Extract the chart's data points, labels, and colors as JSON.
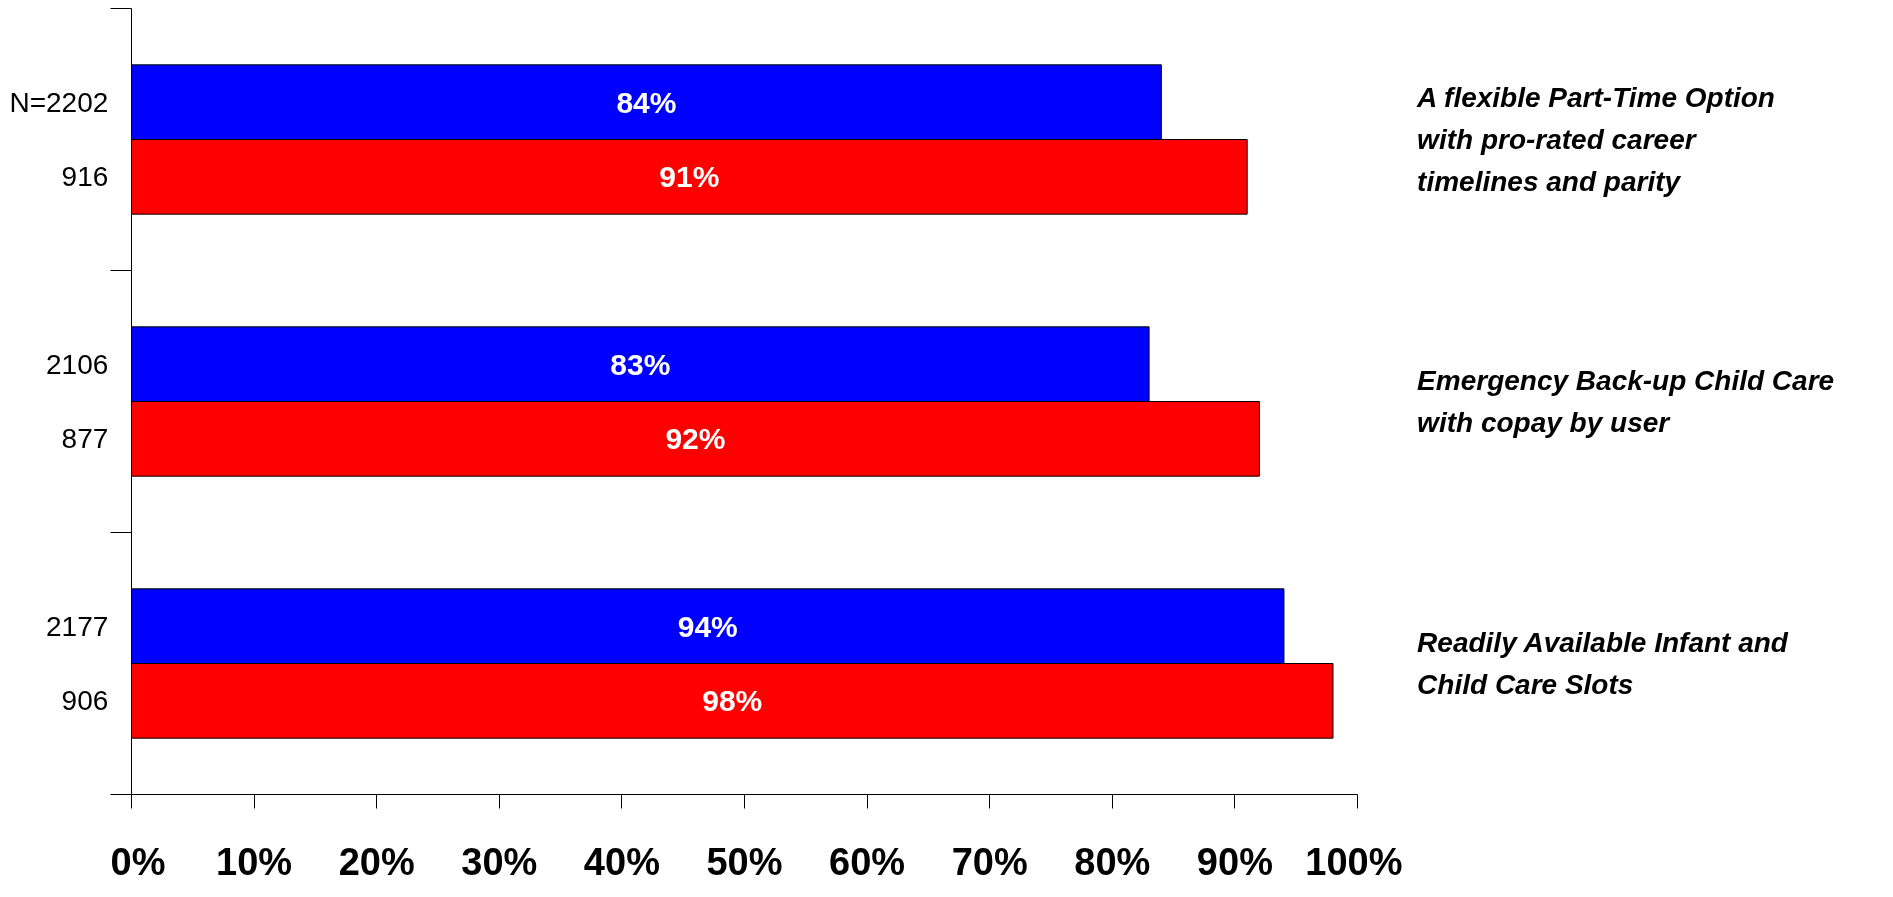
{
  "chart_data": {
    "type": "bar",
    "orientation": "horizontal",
    "categories": [
      "A flexible Part-Time Option with pro-rated career timelines and parity",
      "Emergency Back-up Child Care with copay by user",
      "Readily Available Infant and Child Care Slots"
    ],
    "series": [
      {
        "color": "#0000ff",
        "values": [
          84,
          83,
          94
        ],
        "value_labels": [
          "84%",
          "83%",
          "94%"
        ]
      },
      {
        "color": "#ff0000",
        "values": [
          91,
          92,
          98
        ],
        "value_labels": [
          "91%",
          "92%",
          "98%"
        ]
      }
    ],
    "xlim": [
      0,
      100
    ],
    "xticks": [
      {
        "value": 0,
        "label": "0%"
      },
      {
        "value": 10,
        "label": "10%"
      },
      {
        "value": 20,
        "label": "20%"
      },
      {
        "value": 30,
        "label": "30%"
      },
      {
        "value": 40,
        "label": "40%"
      },
      {
        "value": 50,
        "label": "50%"
      },
      {
        "value": 60,
        "label": "60%"
      },
      {
        "value": 70,
        "label": "70%"
      },
      {
        "value": 80,
        "label": "80%"
      },
      {
        "value": 90,
        "label": "90%"
      },
      {
        "value": 100,
        "label": "100%"
      }
    ],
    "annotations": [
      "N=2202",
      "916",
      "2106",
      "877",
      "2177",
      "906"
    ]
  }
}
